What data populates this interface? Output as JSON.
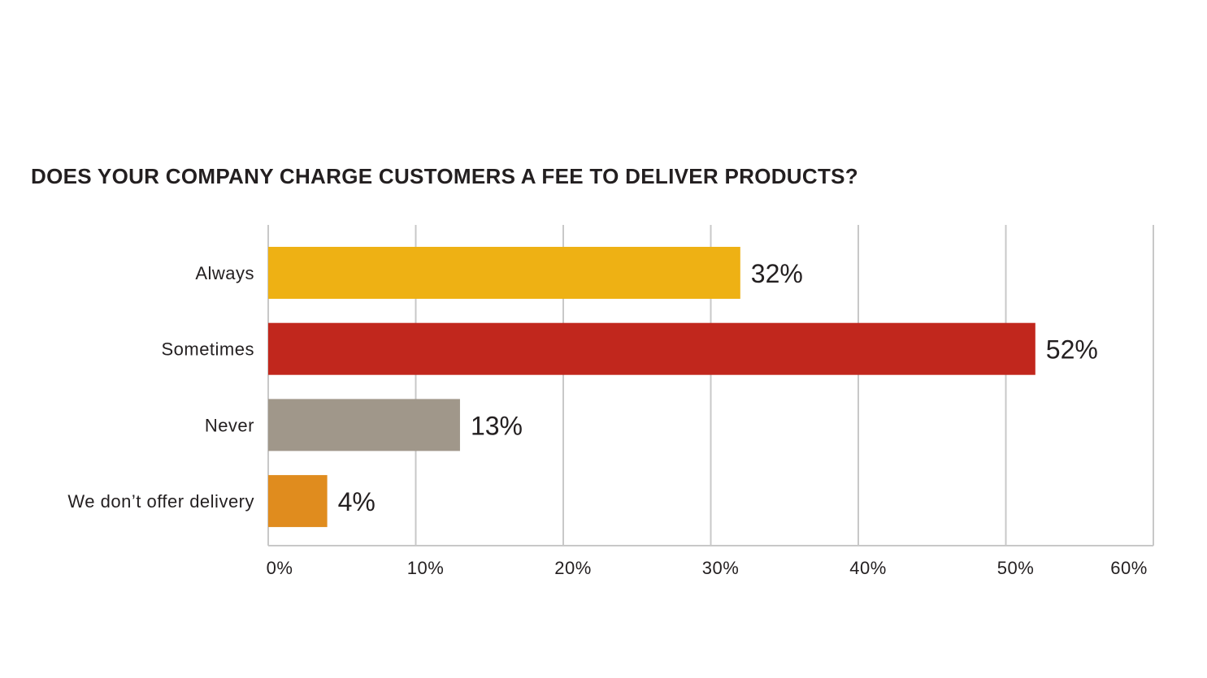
{
  "chart_data": {
    "type": "bar",
    "orientation": "horizontal",
    "title": "DOES YOUR COMPANY CHARGE CUSTOMERS A FEE TO DELIVER PRODUCTS?",
    "categories": [
      "Always",
      "Sometimes",
      "Never",
      "We don’t offer delivery"
    ],
    "values": [
      32,
      52,
      13,
      4
    ],
    "value_labels": [
      "32%",
      "52%",
      "13%",
      "4%"
    ],
    "colors": [
      "#EEB114",
      "#C1271D",
      "#A0978A",
      "#E08C1E"
    ],
    "xlim": [
      0,
      60
    ],
    "xticks": [
      0,
      10,
      20,
      30,
      40,
      50,
      60
    ],
    "xtick_labels": [
      "0%",
      "10%",
      "20%",
      "30%",
      "40%",
      "50%",
      "60%"
    ],
    "grid": "vertical",
    "gridline_color": "#C8C8C8",
    "xlabel": "",
    "ylabel": ""
  }
}
